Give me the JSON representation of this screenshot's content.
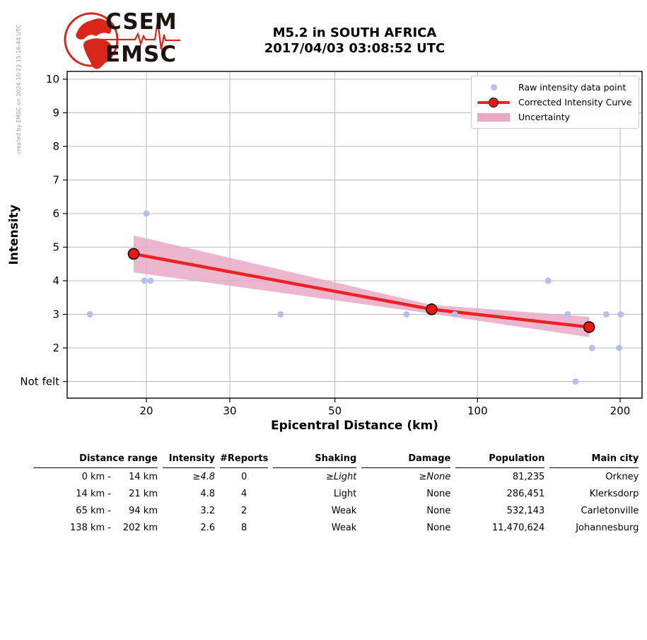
{
  "meta": {
    "created_by": "created by EMSC on 2024-10-23 15:16:44 UTC"
  },
  "logo": {
    "top": "CSEM",
    "bottom": "EMSC"
  },
  "title": {
    "line1": "M5.2 in SOUTH AFRICA",
    "line2": "2017/04/03 03:08:52 UTC"
  },
  "chart_data": {
    "type": "scatter",
    "title": "M5.2 in SOUTH AFRICA 2017/04/03 03:08:52 UTC",
    "xlabel": "Epicentral Distance (km)",
    "ylabel": "Intensity",
    "x_scale": "log",
    "x_range": [
      13.6,
      222
    ],
    "y_range": [
      0.5,
      10.25
    ],
    "x_ticks": [
      20,
      30,
      50,
      100,
      200
    ],
    "y_ticks": [
      {
        "value": 10,
        "label": "10"
      },
      {
        "value": 9,
        "label": "9"
      },
      {
        "value": 8,
        "label": "8"
      },
      {
        "value": 7,
        "label": "7"
      },
      {
        "value": 6,
        "label": "6"
      },
      {
        "value": 5,
        "label": "5"
      },
      {
        "value": 4,
        "label": "4"
      },
      {
        "value": 3,
        "label": "3"
      },
      {
        "value": 2,
        "label": "2"
      },
      {
        "value": 1,
        "label": "Not felt"
      }
    ],
    "grid": true,
    "legend_position": "upper right",
    "legend": [
      "Raw intensity data point",
      "Corrected Intensity Curve",
      "Uncertainty"
    ],
    "raw_points": [
      {
        "x": 15.2,
        "y": 3
      },
      {
        "x": 19.8,
        "y": 4
      },
      {
        "x": 20.0,
        "y": 6
      },
      {
        "x": 20.4,
        "y": 4
      },
      {
        "x": 38.4,
        "y": 3
      },
      {
        "x": 70.8,
        "y": 3
      },
      {
        "x": 89.5,
        "y": 3
      },
      {
        "x": 141,
        "y": 4
      },
      {
        "x": 155,
        "y": 3
      },
      {
        "x": 161,
        "y": 1
      },
      {
        "x": 174.5,
        "y": 2
      },
      {
        "x": 187,
        "y": 3
      },
      {
        "x": 199,
        "y": 2
      },
      {
        "x": 200.5,
        "y": 3
      }
    ],
    "corrected_curve": [
      {
        "x": 18.8,
        "y": 4.8
      },
      {
        "x": 80,
        "y": 3.15
      },
      {
        "x": 172,
        "y": 2.62
      }
    ],
    "uncertainty_band": {
      "x": [
        18.8,
        80,
        172
      ],
      "upper": [
        5.35,
        3.28,
        2.93
      ],
      "lower": [
        4.25,
        3.02,
        2.32
      ]
    },
    "colors": {
      "raw_point": "#b3c0ea",
      "curve": "#ee2222",
      "curve_marker": "#f01515",
      "band": "#e9a9c6",
      "grid": "#bbbbbb"
    }
  },
  "table": {
    "headers": [
      "Distance range",
      "Intensity",
      "#Reports",
      "Shaking",
      "Damage",
      "Population",
      "Main city"
    ],
    "rows": [
      {
        "cells": [
          "0 km -",
          "14 km",
          "≥4.8",
          "0",
          "≥Light",
          "≥None",
          "81,235",
          "Orkney"
        ]
      },
      {
        "cells": [
          "14 km -",
          "21 km",
          "4.8",
          "4",
          "Light",
          "None",
          "286,451",
          "Klerksdorp"
        ]
      },
      {
        "cells": [
          "65 km -",
          "94 km",
          "3.2",
          "2",
          "Weak",
          "None",
          "532,143",
          "Carletonville"
        ]
      },
      {
        "cells": [
          "138 km -",
          "202 km",
          "2.6",
          "8",
          "Weak",
          "None",
          "11,470,624",
          "Johannesburg"
        ]
      }
    ]
  }
}
